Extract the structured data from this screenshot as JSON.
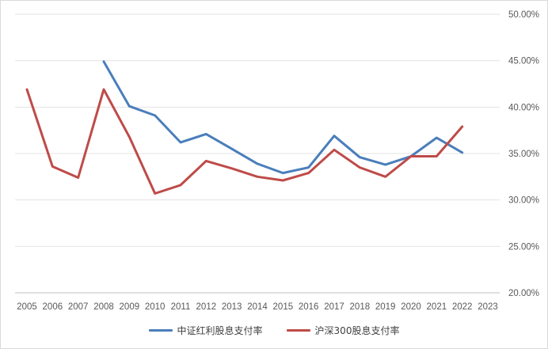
{
  "chart_data": {
    "type": "line",
    "title": "",
    "xlabel": "",
    "ylabel": "",
    "x": [
      "2005",
      "2006",
      "2007",
      "2008",
      "2009",
      "2010",
      "2011",
      "2012",
      "2013",
      "2014",
      "2015",
      "2016",
      "2017",
      "2018",
      "2019",
      "2020",
      "2021",
      "2022",
      "2023"
    ],
    "yticks": [
      "20.00%",
      "25.00%",
      "30.00%",
      "35.00%",
      "40.00%",
      "45.00%",
      "50.00%"
    ],
    "ylim": [
      20,
      50
    ],
    "y_axis_side": "right",
    "grid": true,
    "legend_position": "bottom",
    "series": [
      {
        "name": "中证红利股息支付率",
        "color": "#4a7ebb",
        "values": [
          null,
          null,
          null,
          44.9,
          40.1,
          39.1,
          36.2,
          37.1,
          35.5,
          33.9,
          32.9,
          33.5,
          36.9,
          34.6,
          33.8,
          34.7,
          36.7,
          35.1,
          null
        ]
      },
      {
        "name": "沪深300股息支付率",
        "color": "#be4b48",
        "values": [
          41.9,
          33.6,
          32.4,
          41.9,
          36.8,
          30.7,
          31.6,
          34.2,
          33.4,
          32.5,
          32.1,
          32.9,
          35.4,
          33.5,
          32.5,
          34.7,
          34.7,
          37.9,
          null
        ]
      }
    ]
  }
}
